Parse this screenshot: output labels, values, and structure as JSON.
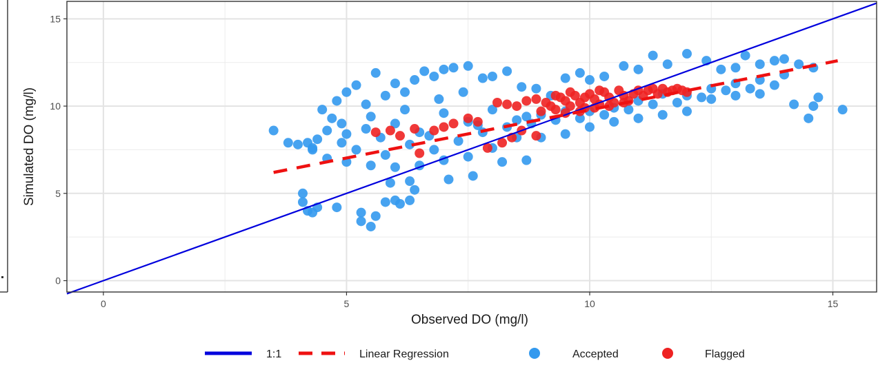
{
  "chart_data": {
    "type": "scatter",
    "xlabel": "Observed DO (mg/l)",
    "ylabel": "Simulated DO (mg/l)",
    "xlim": [
      -0.75,
      15.9
    ],
    "ylim": [
      -0.65,
      16.0
    ],
    "x_ticks": [
      0,
      5,
      10,
      15
    ],
    "y_ticks": [
      0,
      5,
      10,
      15
    ],
    "grid": true,
    "legend_position": "bottom",
    "series": [
      {
        "name": "1:1",
        "kind": "line",
        "style": "solid",
        "color": "#0000dd",
        "x": [
          -0.75,
          15.9
        ],
        "y": [
          -0.75,
          15.9
        ]
      },
      {
        "name": "Linear Regression",
        "kind": "line",
        "style": "dashed",
        "color": "#ee1111",
        "x": [
          3.5,
          15.1
        ],
        "y": [
          6.2,
          12.6
        ]
      },
      {
        "name": "Accepted",
        "kind": "points",
        "color": "#3399ee",
        "points": [
          [
            3.5,
            8.6
          ],
          [
            3.8,
            7.9
          ],
          [
            4.0,
            7.8
          ],
          [
            4.2,
            7.9
          ],
          [
            4.3,
            7.5
          ],
          [
            4.4,
            8.1
          ],
          [
            4.5,
            9.8
          ],
          [
            4.6,
            8.6
          ],
          [
            4.7,
            9.3
          ],
          [
            4.8,
            10.3
          ],
          [
            4.9,
            9.0
          ],
          [
            5.0,
            10.8
          ],
          [
            5.2,
            11.2
          ],
          [
            5.4,
            10.1
          ],
          [
            5.6,
            11.9
          ],
          [
            5.8,
            10.6
          ],
          [
            6.0,
            11.3
          ],
          [
            6.2,
            10.8
          ],
          [
            6.4,
            11.5
          ],
          [
            6.6,
            12.0
          ],
          [
            6.8,
            11.7
          ],
          [
            7.0,
            12.1
          ],
          [
            7.2,
            12.2
          ],
          [
            7.5,
            12.3
          ],
          [
            7.8,
            11.6
          ],
          [
            8.0,
            11.7
          ],
          [
            8.3,
            12.0
          ],
          [
            8.6,
            11.1
          ],
          [
            8.9,
            11.0
          ],
          [
            9.2,
            10.6
          ],
          [
            9.5,
            11.6
          ],
          [
            9.8,
            11.9
          ],
          [
            10.0,
            11.5
          ],
          [
            10.3,
            11.7
          ],
          [
            10.7,
            12.3
          ],
          [
            11.0,
            12.1
          ],
          [
            11.3,
            12.9
          ],
          [
            11.6,
            12.4
          ],
          [
            12.0,
            13.0
          ],
          [
            12.4,
            12.6
          ],
          [
            12.7,
            12.1
          ],
          [
            13.0,
            12.2
          ],
          [
            13.2,
            12.9
          ],
          [
            13.5,
            12.4
          ],
          [
            13.8,
            12.6
          ],
          [
            14.0,
            12.7
          ],
          [
            14.3,
            12.4
          ],
          [
            14.6,
            12.2
          ],
          [
            14.7,
            10.5
          ],
          [
            14.6,
            10.0
          ],
          [
            14.2,
            10.1
          ],
          [
            15.2,
            9.8
          ],
          [
            14.5,
            9.3
          ],
          [
            13.5,
            10.7
          ],
          [
            13.0,
            10.6
          ],
          [
            12.5,
            10.4
          ],
          [
            12.0,
            9.7
          ],
          [
            11.5,
            9.5
          ],
          [
            11.0,
            9.3
          ],
          [
            10.5,
            9.1
          ],
          [
            10.0,
            8.8
          ],
          [
            9.5,
            8.4
          ],
          [
            9.0,
            8.2
          ],
          [
            8.5,
            8.2
          ],
          [
            8.0,
            7.6
          ],
          [
            7.5,
            7.1
          ],
          [
            7.0,
            6.9
          ],
          [
            6.5,
            6.6
          ],
          [
            6.0,
            6.5
          ],
          [
            5.5,
            6.6
          ],
          [
            5.0,
            6.8
          ],
          [
            4.6,
            7.0
          ],
          [
            4.3,
            7.6
          ],
          [
            4.1,
            5.0
          ],
          [
            4.1,
            4.5
          ],
          [
            4.2,
            4.0
          ],
          [
            4.3,
            3.9
          ],
          [
            4.4,
            4.2
          ],
          [
            4.8,
            4.2
          ],
          [
            5.3,
            3.9
          ],
          [
            5.3,
            3.4
          ],
          [
            5.5,
            3.1
          ],
          [
            5.6,
            3.7
          ],
          [
            5.8,
            4.5
          ],
          [
            6.0,
            4.6
          ],
          [
            6.1,
            4.4
          ],
          [
            6.3,
            4.6
          ],
          [
            6.3,
            5.7
          ],
          [
            5.9,
            5.6
          ],
          [
            6.4,
            5.2
          ],
          [
            7.1,
            5.8
          ],
          [
            7.6,
            6.0
          ],
          [
            8.2,
            6.8
          ],
          [
            8.7,
            6.9
          ],
          [
            5.0,
            8.4
          ],
          [
            5.5,
            9.4
          ],
          [
            6.0,
            9.0
          ],
          [
            6.5,
            8.5
          ],
          [
            7.0,
            9.6
          ],
          [
            7.5,
            9.1
          ],
          [
            8.0,
            9.8
          ],
          [
            8.5,
            9.2
          ],
          [
            9.0,
            9.5
          ],
          [
            9.5,
            9.7
          ],
          [
            10.0,
            9.7
          ],
          [
            10.5,
            9.9
          ],
          [
            11.0,
            10.3
          ],
          [
            11.5,
            10.7
          ],
          [
            12.0,
            10.6
          ],
          [
            12.5,
            11.0
          ],
          [
            13.0,
            11.3
          ],
          [
            13.5,
            11.5
          ],
          [
            14.0,
            11.8
          ],
          [
            5.2,
            7.5
          ],
          [
            5.8,
            7.2
          ],
          [
            6.3,
            7.8
          ],
          [
            6.8,
            7.5
          ],
          [
            7.3,
            8.0
          ],
          [
            7.8,
            8.5
          ],
          [
            8.3,
            8.8
          ],
          [
            8.8,
            9.0
          ],
          [
            9.3,
            9.2
          ],
          [
            9.8,
            9.3
          ],
          [
            10.3,
            9.5
          ],
          [
            10.8,
            9.8
          ],
          [
            11.3,
            10.1
          ],
          [
            11.8,
            10.2
          ],
          [
            12.3,
            10.5
          ],
          [
            12.8,
            10.9
          ],
          [
            13.3,
            11.0
          ],
          [
            13.8,
            11.2
          ],
          [
            5.7,
            8.2
          ],
          [
            6.7,
            8.3
          ],
          [
            7.7,
            8.9
          ],
          [
            8.7,
            9.4
          ],
          [
            4.9,
            7.9
          ],
          [
            5.4,
            8.7
          ],
          [
            6.2,
            9.8
          ],
          [
            6.9,
            10.4
          ],
          [
            7.4,
            10.8
          ]
        ]
      },
      {
        "name": "Flagged",
        "kind": "points",
        "color": "#ee2222",
        "points": [
          [
            8.1,
            10.2
          ],
          [
            8.3,
            10.1
          ],
          [
            8.5,
            10.0
          ],
          [
            8.7,
            10.3
          ],
          [
            8.9,
            10.4
          ],
          [
            9.1,
            10.2
          ],
          [
            9.2,
            10.0
          ],
          [
            9.3,
            9.8
          ],
          [
            9.4,
            10.5
          ],
          [
            9.5,
            10.3
          ],
          [
            9.6,
            10.0
          ],
          [
            9.7,
            10.6
          ],
          [
            9.8,
            10.2
          ],
          [
            9.9,
            9.9
          ],
          [
            10.0,
            10.7
          ],
          [
            10.1,
            10.4
          ],
          [
            10.2,
            10.1
          ],
          [
            10.3,
            10.8
          ],
          [
            10.4,
            10.5
          ],
          [
            10.5,
            10.2
          ],
          [
            10.6,
            10.9
          ],
          [
            10.7,
            10.6
          ],
          [
            10.8,
            10.3
          ],
          [
            10.9,
            10.7
          ],
          [
            11.0,
            10.9
          ],
          [
            11.1,
            10.6
          ],
          [
            11.2,
            10.9
          ],
          [
            11.3,
            11.0
          ],
          [
            11.4,
            10.7
          ],
          [
            11.5,
            11.0
          ],
          [
            11.6,
            10.8
          ],
          [
            11.7,
            10.9
          ],
          [
            11.8,
            11.0
          ],
          [
            11.9,
            10.9
          ],
          [
            12.0,
            10.8
          ],
          [
            9.5,
            9.6
          ],
          [
            9.8,
            9.7
          ],
          [
            10.1,
            9.9
          ],
          [
            10.4,
            10.0
          ],
          [
            10.7,
            10.2
          ],
          [
            9.0,
            9.7
          ],
          [
            9.3,
            10.6
          ],
          [
            9.6,
            10.8
          ],
          [
            9.9,
            10.5
          ],
          [
            10.2,
            10.9
          ],
          [
            8.6,
            8.6
          ],
          [
            8.4,
            8.2
          ],
          [
            8.2,
            7.9
          ],
          [
            7.9,
            7.6
          ],
          [
            8.9,
            8.3
          ],
          [
            7.7,
            9.1
          ],
          [
            7.5,
            9.3
          ],
          [
            7.2,
            9.0
          ],
          [
            7.0,
            8.8
          ],
          [
            6.8,
            8.6
          ],
          [
            6.4,
            8.7
          ],
          [
            6.1,
            8.3
          ],
          [
            5.9,
            8.6
          ],
          [
            5.6,
            8.5
          ],
          [
            6.5,
            7.3
          ]
        ]
      }
    ]
  }
}
